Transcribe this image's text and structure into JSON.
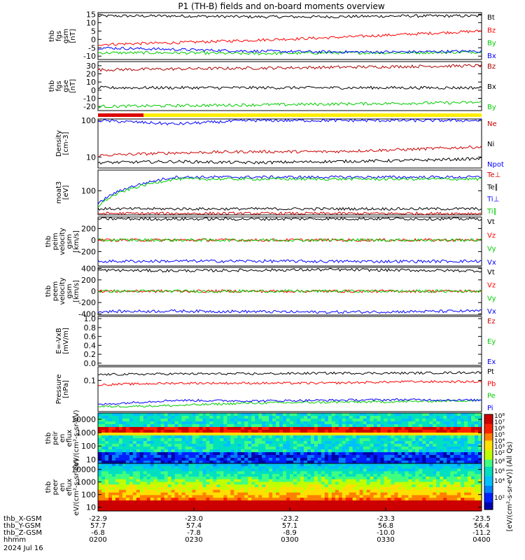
{
  "title": "P1 (TH-B) fields and on-board moments overview",
  "colorbar_label": "[eV/(cm²-s-sr-eV)] (All Qs)",
  "time_ticks": [
    "0200",
    "0230",
    "0300",
    "0330",
    "0400"
  ],
  "eph_rows": [
    {
      "label": "thb_X-GSM",
      "values": [
        "-22.9",
        "-23.0",
        "-23.2",
        "-23.3",
        "-23.5"
      ]
    },
    {
      "label": "thb_Y-GSM",
      "values": [
        "57.7",
        "57.4",
        "57.1",
        "56.8",
        "56.4"
      ]
    },
    {
      "label": "thb_Z-GSM",
      "values": [
        "-6.8",
        "-7.8",
        "-8.9",
        "-10.0",
        "-11.2"
      ]
    },
    {
      "label": "hhmm",
      "values": [
        "0200",
        "0230",
        "0300",
        "0330",
        "0400"
      ]
    }
  ],
  "date_label": "2024 Jul 16",
  "chart_data": [
    {
      "id": "fgs",
      "type": "line",
      "ylabel": "thb fgs gsm [nT]",
      "yticks": [
        "15",
        "10",
        "5",
        "0",
        "-5",
        "-10"
      ],
      "ylim": [
        -12,
        16
      ],
      "series": [
        {
          "name": "Bt",
          "color": "#000000",
          "values": [
            14,
            14,
            13.5,
            13.5,
            14,
            14
          ]
        },
        {
          "name": "Bz",
          "color": "#ff0000",
          "values": [
            -3,
            -2,
            -0.5,
            1,
            3,
            5
          ]
        },
        {
          "name": "By",
          "color": "#00cc00",
          "values": [
            -8,
            -8,
            -8.5,
            -8,
            -8,
            -7.5
          ]
        },
        {
          "name": "Bx",
          "color": "#0000ff",
          "values": [
            -5,
            -6,
            -7,
            -7.5,
            -7.5,
            -7
          ]
        }
      ]
    },
    {
      "id": "fgs-gse",
      "type": "line",
      "ylabel": "thb fgs gse [nT]",
      "yticks": [
        "30",
        "20",
        "10",
        "0",
        "-10",
        "-20"
      ],
      "ylim": [
        -25,
        35
      ],
      "series": [
        {
          "name": "Bz",
          "color": "#aa0000",
          "values": [
            25,
            26,
            27,
            28,
            29,
            30
          ]
        },
        {
          "name": "Bx",
          "color": "#000000",
          "values": [
            3,
            3,
            3,
            3,
            3,
            3
          ]
        },
        {
          "name": "By",
          "color": "#00cc00",
          "values": [
            -20,
            -19,
            -18,
            -17,
            -16,
            -15
          ]
        }
      ]
    },
    {
      "id": "density",
      "type": "line",
      "ylabel": "Density [cm-3]",
      "yticks": [
        "100",
        "10"
      ],
      "ylim": [
        5,
        110
      ],
      "log": true,
      "series": [
        {
          "name": "Ne",
          "color": "#cc0000",
          "values": [
            11,
            13,
            14,
            14,
            16,
            19
          ]
        },
        {
          "name": "Ni",
          "color": "#000000",
          "values": [
            7,
            7.5,
            7,
            7.5,
            8,
            9
          ]
        },
        {
          "name": "Npot",
          "color": "#0000ff",
          "values": [
            100,
            80,
            100,
            100,
            100,
            100
          ]
        }
      ]
    },
    {
      "id": "temp",
      "type": "line",
      "ylabel": "moat3 [eV]",
      "yticks": [
        "100"
      ],
      "ylim": [
        20,
        400
      ],
      "log": true,
      "series": [
        {
          "name": "Te⊥",
          "color": "#cc0000",
          "values": [
            22,
            22,
            22,
            22,
            22,
            22
          ]
        },
        {
          "name": "Te∥",
          "color": "#000000",
          "values": [
            30,
            30,
            30,
            30,
            30,
            30
          ]
        },
        {
          "name": "Ti⊥",
          "color": "#0000ff",
          "values": [
            40,
            250,
            250,
            250,
            250,
            250
          ]
        },
        {
          "name": "Ti∥",
          "color": "#00cc00",
          "values": [
            35,
            220,
            220,
            220,
            220,
            220
          ]
        }
      ]
    },
    {
      "id": "vel-i",
      "type": "line",
      "ylabel": "thb peim velocity gsm [km/s]",
      "yticks": [
        "200",
        "0",
        "-200"
      ],
      "ylim": [
        -450,
        400
      ],
      "series": [
        {
          "name": "Vt",
          "color": "#000000",
          "values": [
            370,
            365,
            365,
            370,
            370,
            365
          ]
        },
        {
          "name": "Vz",
          "color": "#ff0000",
          "values": [
            0,
            0,
            0,
            0,
            0,
            0
          ]
        },
        {
          "name": "Vy",
          "color": "#00cc00",
          "values": [
            0,
            0,
            0,
            0,
            0,
            0
          ]
        },
        {
          "name": "Vx",
          "color": "#0000ff",
          "values": [
            -370,
            -365,
            -365,
            -370,
            -370,
            -365
          ]
        }
      ]
    },
    {
      "id": "vel-e",
      "type": "line",
      "ylabel": "thb peem velocity gsm [km/s]",
      "yticks": [
        "400",
        "200",
        "0",
        "-200",
        "-400"
      ],
      "ylim": [
        -420,
        420
      ],
      "series": [
        {
          "name": "Vt",
          "color": "#000000",
          "values": [
            370,
            360,
            370,
            380,
            370,
            360
          ]
        },
        {
          "name": "Vz",
          "color": "#ff0000",
          "values": [
            0,
            0,
            0,
            0,
            0,
            0
          ]
        },
        {
          "name": "Vy",
          "color": "#00cc00",
          "values": [
            0,
            0,
            0,
            0,
            0,
            0
          ]
        },
        {
          "name": "Vx",
          "color": "#0000ff",
          "values": [
            -360,
            -350,
            -360,
            -370,
            -360,
            -350
          ]
        }
      ]
    },
    {
      "id": "efield",
      "type": "line",
      "ylabel": "E=-VxB [mV/m]",
      "yticks": [
        "1.0",
        "0.8",
        "0.6",
        "0.4",
        "0.2",
        "0.0"
      ],
      "ylim": [
        -0.05,
        1.05
      ],
      "series": [
        {
          "name": "Ez",
          "color": "#cc0000",
          "values": []
        },
        {
          "name": "Ey",
          "color": "#00cc00",
          "values": []
        },
        {
          "name": "Ex",
          "color": "#0000ff",
          "values": []
        }
      ]
    },
    {
      "id": "pressure",
      "type": "line",
      "ylabel": "Pressure [nPa]",
      "yticks": [
        "0.1"
      ],
      "ylim": [
        0.008,
        0.3
      ],
      "log": true,
      "series": [
        {
          "name": "Pt",
          "color": "#000000",
          "values": [
            0.16,
            0.17,
            0.17,
            0.18,
            0.18,
            0.19
          ]
        },
        {
          "name": "Pb",
          "color": "#ff0000",
          "values": [
            0.07,
            0.08,
            0.08,
            0.08,
            0.09,
            0.09
          ]
        },
        {
          "name": "Pe",
          "color": "#00cc00",
          "values": [
            0.012,
            0.013,
            0.016,
            0.017,
            0.018,
            0.02
          ]
        },
        {
          "name": "Pi",
          "color": "#0000ff",
          "values": [
            0.014,
            0.02,
            0.019,
            0.02,
            0.021,
            0.02
          ]
        }
      ]
    },
    {
      "id": "ion-spec",
      "type": "heatmap",
      "ylabel": "thb peir en eflux eV/(cm²-s-sr-eV)",
      "yticks": [
        "10000",
        "1000",
        "100",
        "10"
      ],
      "ylim": [
        5,
        30000
      ],
      "log": true
    },
    {
      "id": "elec-spec",
      "type": "heatmap",
      "ylabel": "thb peer en eflux eV/(cm²-s-sr-eV)",
      "yticks": [
        "10000",
        "1000",
        "100",
        "10"
      ],
      "ylim": [
        5,
        30000
      ],
      "log": true
    }
  ],
  "colorbar": {
    "ticks": [
      "10⁸",
      "10⁷",
      "10⁶",
      "10⁵",
      "10⁴",
      "10³",
      "10²",
      "10⁸",
      "10⁶",
      "10⁴",
      "10²"
    ]
  }
}
